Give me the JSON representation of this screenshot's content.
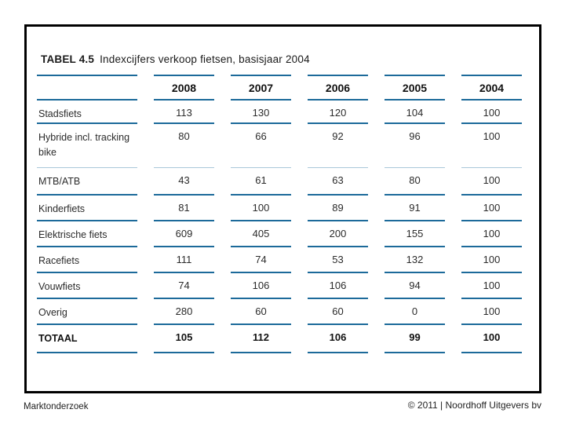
{
  "slide": {
    "footer_left": "Marktonderzoek",
    "footer_right": "© 2011 | Noordhoff Uitgevers bv"
  },
  "colors": {
    "rule_blue": "#1c6a9a",
    "rule_light": "#a9c7d9",
    "frame_black": "#000000"
  },
  "table": {
    "tag": "TABEL 4.5",
    "title": "Indexcijfers verkoop fietsen, basisjaar 2004",
    "columns": [
      "2008",
      "2007",
      "2006",
      "2005",
      "2004"
    ],
    "rows": [
      {
        "label": "Stadsfiets",
        "values": [
          "113",
          "130",
          "120",
          "104",
          "100"
        ]
      },
      {
        "label": "Hybride incl. tracking bike",
        "values": [
          "80",
          "66",
          "92",
          "96",
          "100"
        ]
      },
      {
        "label": "MTB/ATB",
        "values": [
          "43",
          "61",
          "63",
          "80",
          "100"
        ]
      },
      {
        "label": "Kinderfiets",
        "values": [
          "81",
          "100",
          "89",
          "91",
          "100"
        ]
      },
      {
        "label": "Elektrische fiets",
        "values": [
          "609",
          "405",
          "200",
          "155",
          "100"
        ]
      },
      {
        "label": "Racefiets",
        "values": [
          "111",
          "74",
          "53",
          "132",
          "100"
        ]
      },
      {
        "label": "Vouwfiets",
        "values": [
          "74",
          "106",
          "106",
          "94",
          "100"
        ]
      },
      {
        "label": "Overig",
        "values": [
          "280",
          "60",
          "60",
          "0",
          "100"
        ]
      },
      {
        "label": "TOTAAL",
        "values": [
          "105",
          "112",
          "106",
          "99",
          "100"
        ]
      }
    ]
  },
  "chart_data": {
    "type": "table",
    "title": "TABEL 4.5 Indexcijfers verkoop fietsen, basisjaar 2004",
    "categories": [
      "2008",
      "2007",
      "2006",
      "2005",
      "2004"
    ],
    "series": [
      {
        "name": "Stadsfiets",
        "values": [
          113,
          130,
          120,
          104,
          100
        ]
      },
      {
        "name": "Hybride incl. tracking bike",
        "values": [
          80,
          66,
          92,
          96,
          100
        ]
      },
      {
        "name": "MTB/ATB",
        "values": [
          43,
          61,
          63,
          80,
          100
        ]
      },
      {
        "name": "Kinderfiets",
        "values": [
          81,
          100,
          89,
          91,
          100
        ]
      },
      {
        "name": "Elektrische fiets",
        "values": [
          609,
          405,
          200,
          155,
          100
        ]
      },
      {
        "name": "Racefiets",
        "values": [
          111,
          74,
          53,
          132,
          100
        ]
      },
      {
        "name": "Vouwfiets",
        "values": [
          74,
          106,
          106,
          94,
          100
        ]
      },
      {
        "name": "Overig",
        "values": [
          280,
          60,
          60,
          0,
          100
        ]
      },
      {
        "name": "TOTAAL",
        "values": [
          105,
          112,
          106,
          99,
          100
        ]
      }
    ]
  }
}
